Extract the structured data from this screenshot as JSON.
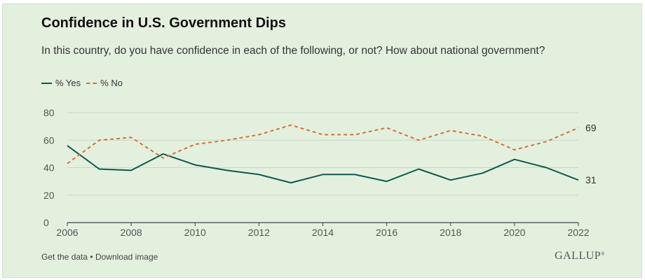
{
  "header": {
    "title": "Confidence in U.S. Government Dips",
    "subtitle": "In this country, do you have confidence in each of the following, or not? How about national government?"
  },
  "legend": {
    "yes_label": "% Yes",
    "no_label": "% No"
  },
  "footer": {
    "get_data_label": "Get the data",
    "separator": "•",
    "download_label": "Download image",
    "brand": "GALLUP",
    "brand_mark": "®"
  },
  "colors": {
    "background": "#e4f0de",
    "yes": "#0b5a4a",
    "no": "#d4733e",
    "grid": "#c9d6c3",
    "axis": "#444444"
  },
  "chart_data": {
    "type": "line",
    "title": "Confidence in U.S. Government Dips",
    "subtitle": "In this country, do you have confidence in each of the following, or not? How about national government?",
    "xlabel": "",
    "ylabel": "",
    "x": [
      2006,
      2007,
      2008,
      2009,
      2010,
      2011,
      2012,
      2013,
      2014,
      2015,
      2016,
      2017,
      2018,
      2019,
      2020,
      2021,
      2022
    ],
    "xticks": [
      2006,
      2008,
      2010,
      2012,
      2014,
      2016,
      2018,
      2020,
      2022
    ],
    "yticks": [
      0,
      20,
      40,
      60,
      80
    ],
    "xlim": [
      2006,
      2022
    ],
    "ylim": [
      0,
      80
    ],
    "grid": true,
    "legend_position": "top-left",
    "series": [
      {
        "name": "% Yes",
        "style": "solid",
        "values": [
          56,
          39,
          38,
          50,
          42,
          38,
          35,
          29,
          35,
          35,
          30,
          39,
          31,
          36,
          46,
          40,
          31
        ],
        "end_label": "31"
      },
      {
        "name": "% No",
        "style": "dashed",
        "values": [
          43,
          60,
          62,
          47,
          57,
          60,
          64,
          71,
          64,
          64,
          69,
          60,
          67,
          63,
          53,
          59,
          69
        ],
        "end_label": "69"
      }
    ]
  }
}
